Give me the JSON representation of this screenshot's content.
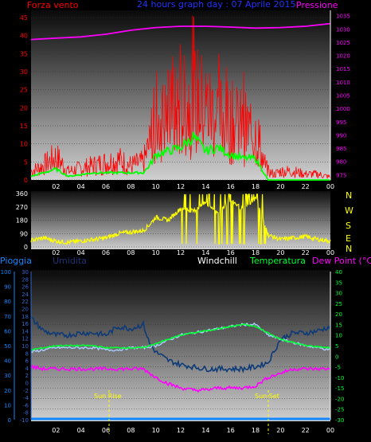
{
  "header": {
    "left_label": "Forza vento",
    "title": "24 hours graph day : 07 Aprile 2015",
    "right_label": "Pressione"
  },
  "colors": {
    "bg": "#000000",
    "wind_gust": "#ff0000",
    "wind_avg": "#00ff00",
    "pressure": "#ff00ff",
    "direction": "#ffff00",
    "humidity": "#113366",
    "windchill": "#aaccff",
    "temperature": "#00ff33",
    "dewpoint": "#ff00ff",
    "rain": "#1188ff"
  },
  "chart_data": [
    {
      "type": "line",
      "title": "24 hours graph day : 07 Aprile 2015",
      "xlabel": "",
      "x_ticks": [
        "02",
        "04",
        "06",
        "08",
        "10",
        "12",
        "14",
        "16",
        "18",
        "20",
        "22",
        "00"
      ],
      "yleft_label": "Forza vento",
      "yleft_ticks": [
        0,
        5,
        10,
        15,
        20,
        25,
        30,
        35,
        40,
        45
      ],
      "ylim_left": [
        0,
        47
      ],
      "yright_label": "Pressione",
      "yright_ticks": [
        975,
        980,
        985,
        990,
        995,
        1000,
        1005,
        1010,
        1015,
        1020,
        1025,
        1030,
        1035
      ],
      "ylim_right": [
        973,
        1037
      ],
      "series": [
        {
          "name": "Forza vento",
          "axis": "left",
          "style": "spiky",
          "x": [
            0,
            1,
            2,
            3,
            4,
            5,
            6,
            7,
            8,
            9,
            9.5,
            10,
            11,
            12,
            13,
            14,
            15,
            16,
            17,
            18,
            18.5,
            19,
            19.5,
            20,
            21,
            22,
            23,
            24
          ],
          "values": [
            3,
            5,
            8,
            3,
            4,
            5,
            6,
            7,
            5,
            6,
            12,
            20,
            22,
            24,
            28,
            25,
            22,
            20,
            18,
            16,
            8,
            3,
            2,
            3,
            3,
            2,
            2,
            1
          ]
        },
        {
          "name": "",
          "axis": "left",
          "x": [
            0,
            1,
            2,
            3,
            4,
            5,
            6,
            7,
            8,
            9,
            9.5,
            10,
            11,
            12,
            13,
            14,
            15,
            16,
            17,
            18,
            18.5,
            19,
            20,
            21,
            22,
            23,
            24
          ],
          "values": [
            1,
            2,
            3,
            1,
            1.5,
            2,
            2,
            2,
            2,
            2,
            4,
            7,
            8,
            9,
            12,
            8,
            9,
            7,
            6,
            6,
            3,
            0,
            0,
            0,
            0,
            0,
            0
          ]
        },
        {
          "name": "Pressione",
          "axis": "right",
          "x": [
            0,
            2,
            4,
            6,
            8,
            10,
            12,
            14,
            16,
            18,
            20,
            22,
            24
          ],
          "values": [
            1026,
            1026.5,
            1027,
            1028,
            1029.5,
            1030.5,
            1031,
            1031,
            1030.7,
            1030.3,
            1030.5,
            1031,
            1032
          ]
        }
      ]
    },
    {
      "type": "line",
      "ylim": [
        0,
        360
      ],
      "y_ticks": [
        0,
        90,
        180,
        270,
        360
      ],
      "right_labels": [
        "N",
        "W",
        "S",
        "E",
        "N"
      ],
      "x_ticks": [
        "02",
        "04",
        "06",
        "08",
        "10",
        "12",
        "14",
        "16",
        "18",
        "20",
        "22",
        "00"
      ],
      "series": [
        {
          "name": "",
          "style": "dir",
          "x": [
            0,
            1,
            2,
            3,
            4,
            5,
            6,
            7,
            8,
            9,
            9.5,
            10,
            11,
            12,
            13,
            14,
            15,
            16,
            17,
            18,
            19,
            20,
            21,
            22,
            23,
            24
          ],
          "values": [
            45,
            60,
            40,
            30,
            40,
            50,
            60,
            90,
            100,
            110,
            150,
            200,
            180,
            260,
            240,
            300,
            230,
            320,
            250,
            330,
            80,
            50,
            60,
            70,
            50,
            40
          ]
        }
      ]
    },
    {
      "type": "line",
      "left1_label": "Pioggia",
      "left1_ticks": [
        0,
        10,
        20,
        30,
        40,
        50,
        60,
        70,
        80,
        90,
        100
      ],
      "left2_label": "Umidita",
      "left2_ticks": [
        -10,
        -8,
        -6,
        -4,
        -2,
        0,
        2,
        4,
        6,
        8,
        10,
        12,
        14,
        16,
        18,
        20,
        22,
        24,
        26,
        28,
        30
      ],
      "right_ticks": [
        -30,
        -25,
        -20,
        -15,
        -10,
        -5,
        0,
        5,
        10,
        15,
        20,
        25,
        30,
        35,
        40
      ],
      "ylim_right": [
        -30,
        40
      ],
      "legend": [
        "Windchill",
        "Temperatura",
        "Dew Point (°C)"
      ],
      "annotations": [
        "Sun Rise",
        "Sun Set"
      ],
      "x_ticks": [
        "02",
        "04",
        "06",
        "08",
        "10",
        "12",
        "14",
        "16",
        "18",
        "20",
        "22",
        "00"
      ],
      "series": [
        {
          "name": "Umidita",
          "x": [
            0,
            1,
            2,
            3,
            4,
            5,
            6,
            7,
            8,
            9,
            9.5,
            10,
            11,
            12,
            13,
            14,
            15,
            16,
            17,
            18,
            19,
            20,
            21,
            22,
            23,
            24
          ],
          "values": [
            18,
            12,
            10,
            10,
            11,
            11,
            10,
            14,
            13,
            15,
            6,
            2,
            -2,
            -4,
            -5,
            -6,
            -6,
            -6,
            -6,
            -5,
            -3,
            8,
            11,
            11,
            12,
            14
          ]
        },
        {
          "name": "Windchill",
          "x": [
            0,
            1,
            2,
            3,
            4,
            5,
            6,
            7,
            8,
            9,
            10,
            12,
            14,
            16,
            17,
            18,
            19,
            20,
            22,
            24
          ],
          "values": [
            2,
            3,
            4,
            4,
            4,
            4,
            3,
            3,
            4,
            4,
            5,
            10,
            12,
            14,
            15,
            15,
            10,
            8,
            5,
            3
          ]
        },
        {
          "name": "Temperatura",
          "x": [
            0,
            1,
            2,
            3,
            4,
            5,
            6,
            7,
            8,
            9,
            10,
            12,
            14,
            16,
            17,
            18,
            19,
            20,
            22,
            24
          ],
          "values": [
            3,
            4,
            5,
            5,
            5,
            5,
            4,
            4,
            4,
            4,
            6,
            10,
            12,
            14,
            15,
            14,
            11,
            8,
            5,
            4
          ]
        },
        {
          "name": "Dew Point (°C)",
          "x": [
            0,
            1,
            2,
            3,
            4,
            5,
            6,
            7,
            8,
            9,
            10,
            11,
            12,
            13,
            14,
            15,
            16,
            17,
            18,
            19,
            20,
            21,
            22,
            23,
            24
          ],
          "values": [
            -5,
            -6,
            -6,
            -6,
            -6,
            -6,
            -6,
            -6,
            -6,
            -6,
            -10,
            -13,
            -15,
            -16,
            -16,
            -15,
            -15,
            -15,
            -14,
            -10,
            -8,
            -6,
            -6,
            -6,
            -6
          ]
        },
        {
          "name": "Pioggia",
          "x": [
            0,
            24
          ],
          "values": [
            0,
            0
          ]
        }
      ]
    }
  ]
}
